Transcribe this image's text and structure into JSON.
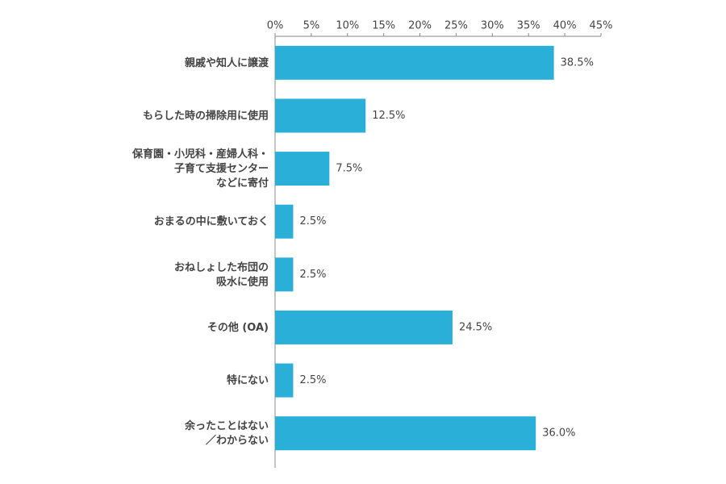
{
  "chart_data": {
    "type": "hbar",
    "categories": [
      [
        "親戚や知人に譲渡"
      ],
      [
        "もらした時の掃除用に使用"
      ],
      [
        "保育園・小児科・産婦人科・",
        "子育て支援センター",
        "などに寄付"
      ],
      [
        "おまるの中に敷いておく"
      ],
      [
        "おねしょした布団の",
        "吸水に使用"
      ],
      [
        "その他 (OA)"
      ],
      [
        "特にない"
      ],
      [
        "余ったことはない",
        "／わからない"
      ]
    ],
    "values": [
      38.5,
      12.5,
      7.5,
      2.5,
      2.5,
      24.5,
      2.5,
      36.0
    ],
    "value_labels": [
      "38.5%",
      "12.5%",
      "7.5%",
      "2.5%",
      "2.5%",
      "24.5%",
      "2.5%",
      "36.0%"
    ],
    "color": "#2ab0d8",
    "xlim": [
      0,
      45
    ],
    "xticks": [
      {
        "value": 0,
        "label": "0%"
      },
      {
        "value": 5,
        "label": "5%"
      },
      {
        "value": 10,
        "label": "10%"
      },
      {
        "value": 15,
        "label": "15%"
      },
      {
        "value": 20,
        "label": "20%"
      },
      {
        "value": 25,
        "label": "25%"
      },
      {
        "value": 30,
        "label": "30%"
      },
      {
        "value": 35,
        "label": "35%"
      },
      {
        "value": 40,
        "label": "40%"
      },
      {
        "value": 45,
        "label": "45%"
      }
    ],
    "grid": false
  }
}
